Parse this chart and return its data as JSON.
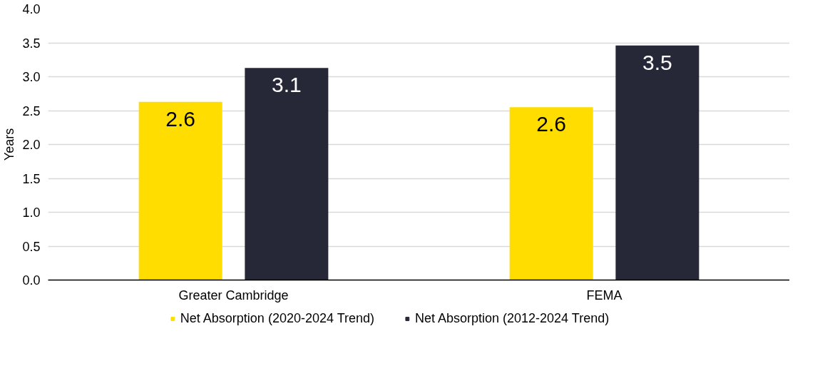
{
  "chart_data": {
    "type": "bar",
    "ylabel": "Years",
    "categories": [
      "Greater Cambridge",
      "FEMA"
    ],
    "series": [
      {
        "name": "Net Absorption (2020-2024 Trend)",
        "color": "#ffdd00",
        "values": [
          2.63,
          2.55
        ],
        "value_labels": [
          "2.6",
          "2.6"
        ]
      },
      {
        "name": "Net Absorption (2012-2024 Trend)",
        "color": "#262838",
        "values": [
          3.13,
          3.46
        ],
        "value_labels": [
          "3.1",
          "3.5"
        ]
      }
    ],
    "ylim": [
      0,
      4
    ],
    "yticks": [
      {
        "value": 0,
        "label": "0.0"
      },
      {
        "value": 0.5,
        "label": "0.5"
      },
      {
        "value": 1,
        "label": "1.0"
      },
      {
        "value": 1.5,
        "label": "1.5"
      },
      {
        "value": 2,
        "label": "2.0"
      },
      {
        "value": 2.5,
        "label": "2.5"
      },
      {
        "value": 3,
        "label": "3.0"
      },
      {
        "value": 3.5,
        "label": "3.5"
      },
      {
        "value": 4,
        "label": "4.0"
      }
    ],
    "grid": "y",
    "legend": "bottom"
  }
}
